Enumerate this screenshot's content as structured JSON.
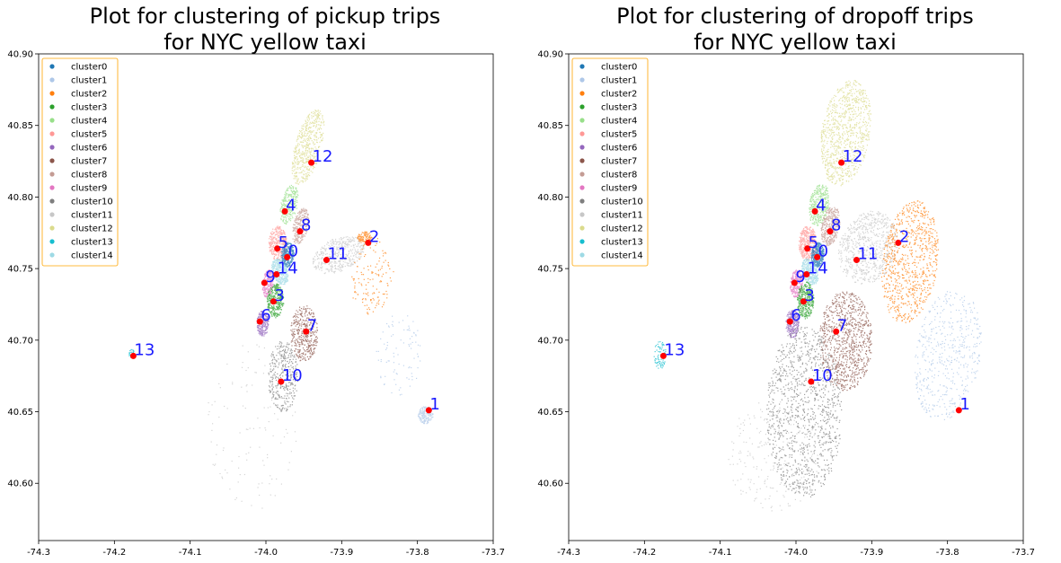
{
  "chart_data": [
    {
      "type": "scatter",
      "title_line1": "Plot for clustering of pickup trips",
      "title_line2": "for NYC yellow taxi",
      "xlabel": "",
      "ylabel": "",
      "xlim": [
        -74.3,
        -73.7
      ],
      "ylim": [
        40.56,
        40.9
      ],
      "xticks": [
        "-74.3",
        "-74.2",
        "-74.1",
        "-74.0",
        "-73.9",
        "-73.8",
        "-73.7"
      ],
      "xtick_values": [
        -74.3,
        -74.2,
        -74.1,
        -74.0,
        -73.9,
        -73.8,
        -73.7
      ],
      "yticks": [
        "40.60",
        "40.65",
        "40.70",
        "40.75",
        "40.80",
        "40.85",
        "40.90"
      ],
      "ytick_values": [
        40.6,
        40.65,
        40.7,
        40.75,
        40.8,
        40.85,
        40.9
      ],
      "legend_position": "top-left",
      "legend": [
        "cluster0",
        "cluster1",
        "cluster2",
        "cluster3",
        "cluster4",
        "cluster5",
        "cluster6",
        "cluster7",
        "cluster8",
        "cluster9",
        "cluster10",
        "cluster11",
        "cluster12",
        "cluster13",
        "cluster14"
      ],
      "centers": [
        {
          "label": "0",
          "x": -73.972,
          "y": 40.758
        },
        {
          "label": "1",
          "x": -73.785,
          "y": 40.651
        },
        {
          "label": "2",
          "x": -73.865,
          "y": 40.768
        },
        {
          "label": "3",
          "x": -73.99,
          "y": 40.727
        },
        {
          "label": "4",
          "x": -73.975,
          "y": 40.79
        },
        {
          "label": "5",
          "x": -73.985,
          "y": 40.764
        },
        {
          "label": "6",
          "x": -74.008,
          "y": 40.713
        },
        {
          "label": "7",
          "x": -73.947,
          "y": 40.706
        },
        {
          "label": "8",
          "x": -73.955,
          "y": 40.776
        },
        {
          "label": "9",
          "x": -74.002,
          "y": 40.74
        },
        {
          "label": "10",
          "x": -73.98,
          "y": 40.671
        },
        {
          "label": "11",
          "x": -73.92,
          "y": 40.756
        },
        {
          "label": "12",
          "x": -73.94,
          "y": 40.824
        },
        {
          "label": "13",
          "x": -74.175,
          "y": 40.689
        },
        {
          "label": "14",
          "x": -73.986,
          "y": 40.746
        }
      ]
    },
    {
      "type": "scatter",
      "title_line1": "Plot for clustering of dropoff trips",
      "title_line2": "for NYC yellow taxi",
      "xlabel": "",
      "ylabel": "",
      "xlim": [
        -74.3,
        -73.7
      ],
      "ylim": [
        40.56,
        40.9
      ],
      "xticks": [
        "-74.3",
        "-74.2",
        "-74.1",
        "-74.0",
        "-73.9",
        "-73.8",
        "-73.7"
      ],
      "xtick_values": [
        -74.3,
        -74.2,
        -74.1,
        -74.0,
        -73.9,
        -73.8,
        -73.7
      ],
      "yticks": [
        "40.60",
        "40.65",
        "40.70",
        "40.75",
        "40.80",
        "40.85",
        "40.90"
      ],
      "ytick_values": [
        40.6,
        40.65,
        40.7,
        40.75,
        40.8,
        40.85,
        40.9
      ],
      "legend_position": "top-left",
      "legend": [
        "cluster0",
        "cluster1",
        "cluster2",
        "cluster3",
        "cluster4",
        "cluster5",
        "cluster6",
        "cluster7",
        "cluster8",
        "cluster9",
        "cluster10",
        "cluster11",
        "cluster12",
        "cluster13",
        "cluster14"
      ],
      "centers": [
        {
          "label": "0",
          "x": -73.972,
          "y": 40.758
        },
        {
          "label": "1",
          "x": -73.785,
          "y": 40.651
        },
        {
          "label": "2",
          "x": -73.865,
          "y": 40.768
        },
        {
          "label": "3",
          "x": -73.99,
          "y": 40.727
        },
        {
          "label": "4",
          "x": -73.975,
          "y": 40.79
        },
        {
          "label": "5",
          "x": -73.985,
          "y": 40.764
        },
        {
          "label": "6",
          "x": -74.008,
          "y": 40.713
        },
        {
          "label": "7",
          "x": -73.947,
          "y": 40.706
        },
        {
          "label": "8",
          "x": -73.955,
          "y": 40.776
        },
        {
          "label": "9",
          "x": -74.002,
          "y": 40.74
        },
        {
          "label": "10",
          "x": -73.98,
          "y": 40.671
        },
        {
          "label": "11",
          "x": -73.92,
          "y": 40.756
        },
        {
          "label": "12",
          "x": -73.94,
          "y": 40.824
        },
        {
          "label": "13",
          "x": -74.175,
          "y": 40.689
        },
        {
          "label": "14",
          "x": -73.986,
          "y": 40.746
        }
      ]
    }
  ],
  "colors": {
    "palette": [
      "#1f77b4",
      "#aec7e8",
      "#ff7f0e",
      "#2ca02c",
      "#98df8a",
      "#ff9896",
      "#9467bd",
      "#8c564b",
      "#c49c94",
      "#e377c2",
      "#7f7f7f",
      "#c7c7c7",
      "#dbdb8d",
      "#17becf",
      "#9edae5"
    ],
    "center_marker": "#ff0000",
    "center_label": "#1a1aff",
    "legend_border": "#ffa500"
  }
}
